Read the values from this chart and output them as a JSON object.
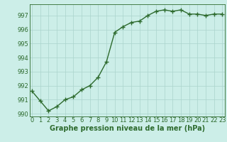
{
  "x": [
    0,
    1,
    2,
    3,
    4,
    5,
    6,
    7,
    8,
    9,
    10,
    11,
    12,
    13,
    14,
    15,
    16,
    17,
    18,
    19,
    20,
    21,
    22,
    23
  ],
  "y": [
    991.6,
    990.9,
    990.2,
    990.5,
    991.0,
    991.2,
    991.7,
    992.0,
    992.6,
    993.7,
    995.8,
    996.2,
    996.5,
    996.6,
    997.0,
    997.3,
    997.4,
    997.3,
    997.4,
    997.1,
    997.1,
    997.0,
    997.1,
    997.1
  ],
  "ylim": [
    989.8,
    997.8
  ],
  "yticks": [
    990,
    991,
    992,
    993,
    994,
    995,
    996,
    997
  ],
  "xticks": [
    0,
    1,
    2,
    3,
    4,
    5,
    6,
    7,
    8,
    9,
    10,
    11,
    12,
    13,
    14,
    15,
    16,
    17,
    18,
    19,
    20,
    21,
    22,
    23
  ],
  "line_color": "#2d6a2d",
  "marker": "+",
  "marker_size": 4,
  "line_width": 1.0,
  "bg_color": "#cceee8",
  "grid_color": "#aad4cc",
  "xlabel": "Graphe pression niveau de la mer (hPa)",
  "xlabel_fontsize": 7,
  "tick_fontsize": 6,
  "xlim": [
    -0.3,
    23.3
  ]
}
